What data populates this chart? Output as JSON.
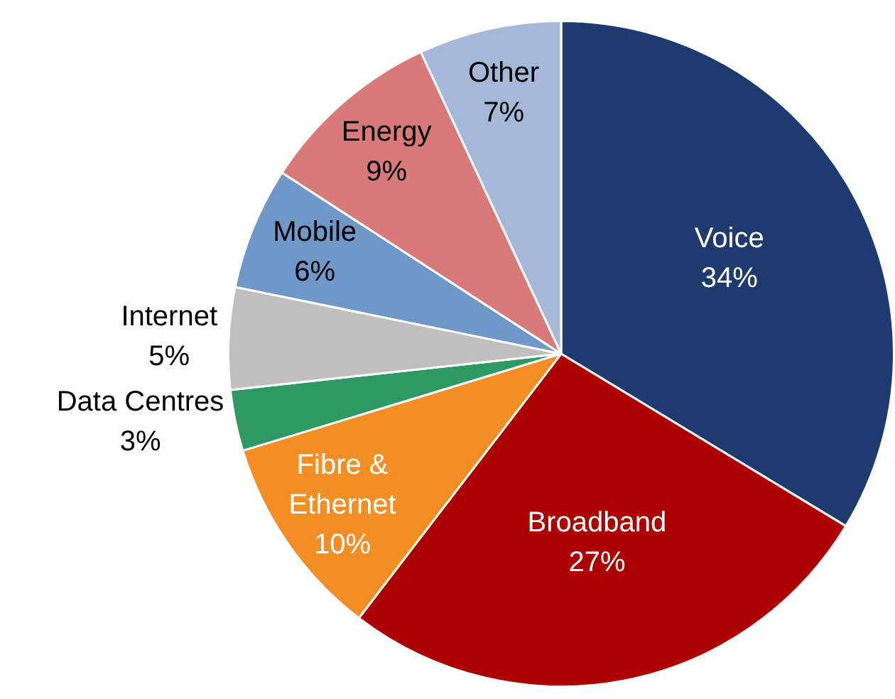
{
  "chart_data": {
    "type": "pie",
    "categories": [
      "Voice",
      "Broadband",
      "Fibre & Ethernet",
      "Data Centres",
      "Internet",
      "Mobile",
      "Energy",
      "Other"
    ],
    "values": [
      34,
      27,
      10,
      3,
      5,
      6,
      9,
      7
    ],
    "colors": [
      "#1f3a6e",
      "#ad0000",
      "#f28e24",
      "#2e9a63",
      "#bfbfbf",
      "#6f97c8",
      "#d87a78",
      "#a5b8d8"
    ],
    "value_labels": [
      "34%",
      "27%",
      "10%",
      "3%",
      "5%",
      "6%",
      "9%",
      "7%"
    ],
    "legend": false
  }
}
